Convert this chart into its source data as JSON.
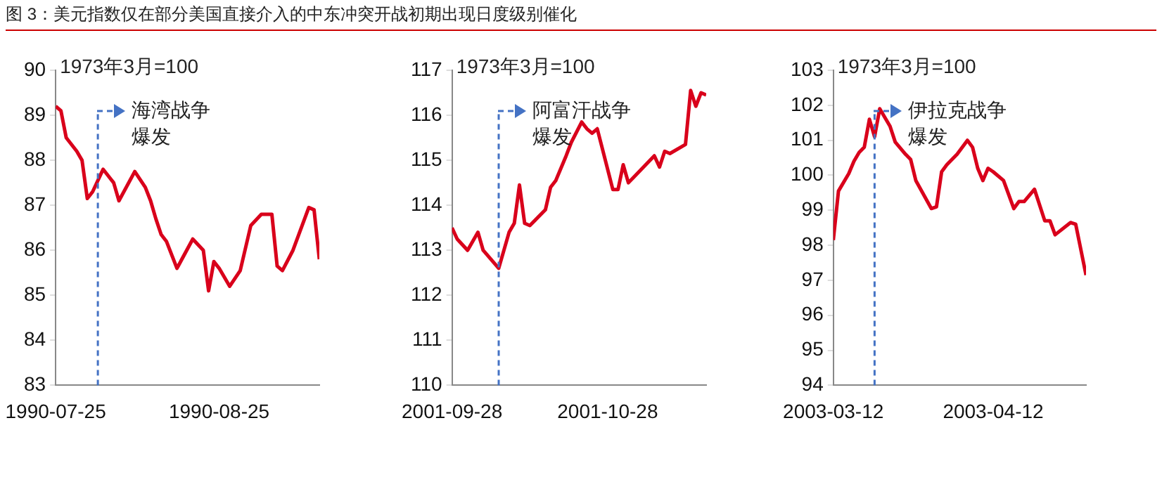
{
  "chart_data": [
    {
      "type": "line",
      "title": "图 3：美元指数仅在部分美国直接介入的中东冲突开战初期出现日度级别催化",
      "annotations": [
        "1973年3月=100"
      ],
      "grid": false,
      "legend": false,
      "marker": "none",
      "line_style": "solid",
      "x": [
        "1990-07-25",
        "1990-07-26",
        "1990-07-27",
        "1990-07-29",
        "1990-07-30",
        "1990-07-31",
        "1990-08-01",
        "1990-08-03",
        "1990-08-05",
        "1990-08-06",
        "1990-08-09",
        "1990-08-11",
        "1990-08-12",
        "1990-08-13",
        "1990-08-14",
        "1990-08-15",
        "1990-08-17",
        "1990-08-20",
        "1990-08-22",
        "1990-08-23",
        "1990-08-24",
        "1990-08-25",
        "1990-08-27",
        "1990-08-29",
        "1990-08-31",
        "1990-09-02",
        "1990-09-04",
        "1990-09-05",
        "1990-09-06",
        "1990-09-08",
        "1990-09-11",
        "1990-09-12",
        "1990-09-13"
      ],
      "series": [
        {
          "color": "#d9001b",
          "values": [
            89.2,
            89.1,
            88.5,
            88.2,
            88.0,
            87.15,
            87.3,
            87.8,
            87.5,
            87.1,
            87.75,
            87.4,
            87.1,
            86.7,
            86.35,
            86.2,
            85.6,
            86.25,
            86.0,
            85.1,
            85.75,
            85.6,
            85.2,
            85.55,
            86.55,
            86.8,
            86.8,
            85.65,
            85.55,
            86.0,
            86.95,
            86.9,
            85.8
          ]
        }
      ],
      "xlim": [
        "1990-07-25",
        "1990-09-13"
      ],
      "xticks": [
        "1990-07-25",
        "1990-08-25"
      ],
      "ylim": [
        83,
        90
      ],
      "yticks": [
        83,
        84,
        85,
        86,
        87,
        88,
        89,
        90
      ],
      "ref_lines": [
        {
          "axis": "x",
          "value": "1990-08-02",
          "label": "海湾战争爆发",
          "color": "#4472c4",
          "line_style": "dashed"
        }
      ]
    },
    {
      "type": "line",
      "annotations": [
        "1973年3月=100"
      ],
      "grid": false,
      "legend": false,
      "marker": "none",
      "line_style": "solid",
      "x": [
        "2001-09-28",
        "2001-09-29",
        "2001-10-01",
        "2001-10-03",
        "2001-10-04",
        "2001-10-07",
        "2001-10-09",
        "2001-10-10",
        "2001-10-11",
        "2001-10-12",
        "2001-10-13",
        "2001-10-16",
        "2001-10-17",
        "2001-10-18",
        "2001-10-20",
        "2001-10-21",
        "2001-10-23",
        "2001-10-24",
        "2001-10-25",
        "2001-10-26",
        "2001-10-27",
        "2001-10-29",
        "2001-10-30",
        "2001-10-31",
        "2001-11-01",
        "2001-11-06",
        "2001-11-07",
        "2001-11-08",
        "2001-11-09",
        "2001-11-12",
        "2001-11-13",
        "2001-11-14",
        "2001-11-15",
        "2001-11-16"
      ],
      "series": [
        {
          "color": "#d9001b",
          "values": [
            113.5,
            113.25,
            113.0,
            113.4,
            113.0,
            112.6,
            113.4,
            113.6,
            114.45,
            113.6,
            113.55,
            113.9,
            114.4,
            114.55,
            115.1,
            115.4,
            115.85,
            115.7,
            115.6,
            115.7,
            115.25,
            114.35,
            114.35,
            114.9,
            114.5,
            115.1,
            114.85,
            115.2,
            115.15,
            115.35,
            116.55,
            116.2,
            116.5,
            116.45
          ]
        }
      ],
      "xlim": [
        "2001-09-28",
        "2001-11-16"
      ],
      "xticks": [
        "2001-09-28",
        "2001-10-28"
      ],
      "ylim": [
        110,
        117
      ],
      "yticks": [
        110,
        111,
        112,
        113,
        114,
        115,
        116,
        117
      ],
      "ref_lines": [
        {
          "axis": "x",
          "value": "2001-10-07",
          "label": "阿富汗战争爆发",
          "color": "#4472c4",
          "line_style": "dashed"
        }
      ]
    },
    {
      "type": "line",
      "annotations": [
        "1973年3月=100"
      ],
      "grid": false,
      "legend": false,
      "marker": "none",
      "line_style": "solid",
      "x": [
        "2003-03-12",
        "2003-03-13",
        "2003-03-15",
        "2003-03-16",
        "2003-03-17",
        "2003-03-18",
        "2003-03-19",
        "2003-03-20",
        "2003-03-21",
        "2003-03-23",
        "2003-03-24",
        "2003-03-26",
        "2003-03-27",
        "2003-03-28",
        "2003-03-31",
        "2003-04-01",
        "2003-04-02",
        "2003-04-03",
        "2003-04-05",
        "2003-04-07",
        "2003-04-08",
        "2003-04-09",
        "2003-04-10",
        "2003-04-11",
        "2003-04-12",
        "2003-04-14",
        "2003-04-16",
        "2003-04-17",
        "2003-04-18",
        "2003-04-20",
        "2003-04-22",
        "2003-04-23",
        "2003-04-24",
        "2003-04-27",
        "2003-04-28",
        "2003-04-30"
      ],
      "series": [
        {
          "color": "#d9001b",
          "values": [
            98.15,
            99.55,
            100.05,
            100.4,
            100.65,
            100.8,
            101.6,
            101.1,
            101.9,
            101.4,
            100.95,
            100.6,
            100.45,
            99.85,
            99.05,
            99.1,
            100.1,
            100.3,
            100.6,
            101.0,
            100.8,
            100.2,
            99.85,
            100.2,
            100.1,
            99.85,
            99.05,
            99.25,
            99.25,
            99.6,
            98.7,
            98.7,
            98.3,
            98.65,
            98.6,
            97.15
          ]
        }
      ],
      "xlim": [
        "2003-03-12",
        "2003-04-30"
      ],
      "xticks": [
        "2003-03-12",
        "2003-04-12"
      ],
      "ylim": [
        94,
        103
      ],
      "yticks": [
        94,
        95,
        96,
        97,
        98,
        99,
        100,
        101,
        102,
        103
      ],
      "ref_lines": [
        {
          "axis": "x",
          "value": "2003-03-20",
          "label": "伊拉克战争爆发",
          "color": "#4472c4",
          "line_style": "dashed"
        }
      ]
    }
  ]
}
